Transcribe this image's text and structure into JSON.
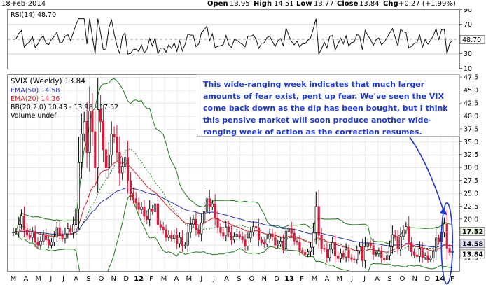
{
  "header": {
    "date": "18-Feb-2014",
    "open_label": "Open",
    "open": "13.95",
    "high_label": "High",
    "high": "14.51",
    "low_label": "Low",
    "low": "13.77",
    "close_label": "Close",
    "close": "13.84",
    "chg_label": "Chg",
    "chg": "+0.27 (+1.99%)"
  },
  "rsi_panel": {
    "legend": "RSI(14) 48.70",
    "current_tag": "48.70",
    "ticks": [
      "90",
      "70",
      "50",
      "30",
      "10"
    ]
  },
  "main_panel": {
    "legend_symbol": "$VIX (Weekly) 13.84",
    "legend_ema50": "EMA(50) 14.58",
    "legend_ema20": "EMA(20) 14.36",
    "legend_bb": "BB(20,2.0) 10.43 - 13.98 - 17.52",
    "legend_volume": "Volume undef",
    "ytick_labels": [
      "47.5",
      "45.0",
      "42.5",
      "40.0",
      "37.5",
      "35.0",
      "32.5",
      "30.0",
      "27.5",
      "25.0",
      "22.5",
      "20.0",
      "17.5",
      "15.0",
      "12.5"
    ],
    "tag_upper": "17.52",
    "tag_mid": "14.58",
    "tag_close": "13.84",
    "annotation": "This wide-ranging week indicates that much larger amounts of fear exist, pent up fear. We've seen the VIX come back down as the dip has been bought, but I think this pensive market will soon produce another wide-ranging week of action as the correction resumes.",
    "x_labels": [
      "M",
      "A",
      "M",
      "J",
      "J",
      "A",
      "S",
      "O",
      "N",
      "D",
      "12",
      "F",
      "M",
      "A",
      "M",
      "J",
      "J",
      "A",
      "S",
      "O",
      "N",
      "D",
      "13",
      "F",
      "M",
      "A",
      "M",
      "J",
      "J",
      "A",
      "S",
      "O",
      "N",
      "D",
      "14",
      "F"
    ]
  },
  "colors": {
    "up_candle": "#ffffff",
    "down_candle": "#d21d3c",
    "ema50": "#2a35a8",
    "ema20": "#d2202c",
    "bollinger": "#1e7a1e",
    "annotation_text": "#1f39c9",
    "arrow": "#1f39c9"
  },
  "chart_data": {
    "type": "candlestick",
    "title": "$VIX (Weekly)",
    "date": "18-Feb-2014",
    "ylim": [
      10,
      48
    ],
    "period": "Mar 2011 - Feb 2014, weekly",
    "last": {
      "open": 13.95,
      "high": 14.51,
      "low": 13.77,
      "close": 13.84,
      "change": 0.27,
      "change_pct": 1.99
    },
    "indicators": {
      "EMA50": 14.58,
      "EMA20": 14.36,
      "BB_lower": 10.43,
      "BB_mid": 13.98,
      "BB_upper": 17.52,
      "RSI14": 48.7
    },
    "closes": [
      17.5,
      17.6,
      19.0,
      20.7,
      18.0,
      16.9,
      16.5,
      17.5,
      15.6,
      15.0,
      15.8,
      17.0,
      16.0,
      15.0,
      15.6,
      16.6,
      18.4,
      17.0,
      16.3,
      17.2,
      18.2,
      17.5,
      19.0,
      22.0,
      31.0,
      36.5,
      39.0,
      33.0,
      41.0,
      37.0,
      30.0,
      41.3,
      39.0,
      33.5,
      30.0,
      32.5,
      36.5,
      36.0,
      33.0,
      29.0,
      30.3,
      32.0,
      27.5,
      25.0,
      24.0,
      23.2,
      21.9,
      22.4,
      20.6,
      20.0,
      22.0,
      21.5,
      23.0,
      19.0,
      18.5,
      18.0,
      16.5,
      17.0,
      16.3,
      17.0,
      15.3,
      16.5,
      14.8,
      15.0,
      17.5,
      19.0,
      20.0,
      18.0,
      17.2,
      19.3,
      21.5,
      24.0,
      22.4,
      23.0,
      20.2,
      18.5,
      17.4,
      16.8,
      18.5,
      17.5,
      16.0,
      16.7,
      17.1,
      16.7,
      16.0,
      14.8,
      16.4,
      17.5,
      18.6,
      18.4,
      16.0,
      15.5,
      15.2,
      16.2,
      17.2,
      16.6,
      15.0,
      15.2,
      15.8,
      14.4,
      17.7,
      18.3,
      17.3,
      15.8,
      15.6,
      14.0,
      13.6,
      13.2,
      13.7,
      14.6,
      17.4,
      22.5,
      16.9,
      14.4,
      14.2,
      12.6,
      14.2,
      15.5,
      12.9,
      12.4,
      13.4,
      12.7,
      14.1,
      12.6,
      12.3,
      12.2,
      13.9,
      14.7,
      12.0,
      14.7,
      15.4,
      14.9,
      13.2,
      13.3,
      13.8,
      12.5,
      12.2,
      13.0,
      14.7,
      17.0,
      16.6,
      14.3,
      16.7,
      17.9,
      18.6,
      15.5,
      13.7,
      13.1,
      12.8,
      14.4,
      12.6,
      13.0,
      12.2,
      12.5,
      13.8,
      16.4,
      15.6,
      17.5,
      19.1,
      14.4,
      13.6,
      13.84
    ],
    "rsi": {
      "name": "RSI(14)",
      "last": 48.7,
      "ylim": [
        10,
        90
      ]
    }
  }
}
